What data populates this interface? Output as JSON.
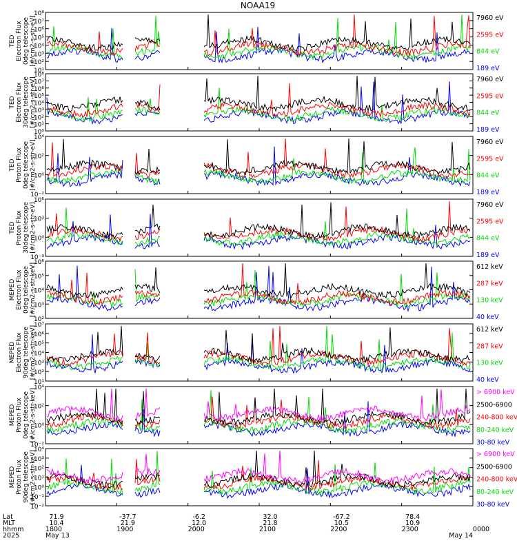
{
  "title": "NOAA19",
  "colors": {
    "black": "#000000",
    "red": "#ff0000",
    "green": "#00dd00",
    "blue": "#0000ff",
    "magenta": "#ff00ff"
  },
  "footer": {
    "row_labels": [
      "Lat",
      "MLT",
      "hhmm",
      "2025"
    ],
    "lat": [
      "71.9",
      "-37.7",
      "-6.2",
      "32.0",
      "-67.2",
      "78.4"
    ],
    "mlt": [
      "10.4",
      "21.9",
      "12.0",
      "21.8",
      "10.5",
      "10.9"
    ],
    "hhmm": [
      "1800",
      "1900",
      "2000",
      "2100",
      "2200",
      "2300",
      "0000"
    ],
    "date_start": "May 13",
    "date_end": "May 14"
  },
  "chart_data": [
    {
      "type": "line",
      "ylabel": [
        "TED",
        "Electron Flux",
        "0deg telescope",
        "[#/cm2-s-str-eV]"
      ],
      "yticks": [
        "10⁸",
        "10⁷",
        "10⁶",
        "10⁵",
        "10⁴",
        "10³",
        "10²",
        "10¹"
      ],
      "ylog": [
        1,
        8
      ],
      "legend": [
        {
          "label": "7960 eV",
          "color": "black"
        },
        {
          "label": "2595 eV",
          "color": "red"
        },
        {
          "label": "844 eV",
          "color": "green"
        },
        {
          "label": "189 eV",
          "color": "blue"
        }
      ]
    },
    {
      "type": "line",
      "ylabel": [
        "TED",
        "Electron Flux",
        "30deg telescope",
        "[#/cm2-s-str-eV]"
      ],
      "yticks": [
        "10⁸",
        "10⁷",
        "10⁶",
        "10⁵",
        "10⁴",
        "10³",
        "10²",
        "10¹",
        "10⁰"
      ],
      "ylog": [
        0,
        8
      ],
      "legend": [
        {
          "label": "7960 eV",
          "color": "black"
        },
        {
          "label": "2595 eV",
          "color": "red"
        },
        {
          "label": "844 eV",
          "color": "green"
        },
        {
          "label": "189 eV",
          "color": "blue"
        }
      ]
    },
    {
      "type": "line",
      "ylabel": [
        "TED",
        "Proton Flux",
        "0deg telescope",
        "[#/cm2-s-str-eV]"
      ],
      "yticks": [
        "10⁴",
        "10²",
        "10⁰",
        "10⁻²"
      ],
      "ylog": [
        -2,
        4
      ],
      "legend": [
        {
          "label": "7960 eV",
          "color": "black"
        },
        {
          "label": "2595 eV",
          "color": "red"
        },
        {
          "label": "844 eV",
          "color": "green"
        },
        {
          "label": "189 eV",
          "color": "blue"
        }
      ]
    },
    {
      "type": "line",
      "ylabel": [
        "TED",
        "Proton Flux",
        "30deg telescope",
        "[#/cm2-s-str-eV]"
      ],
      "yticks": [
        "10⁶",
        "10³",
        "10⁰",
        "10⁻³"
      ],
      "ylog": [
        -3,
        6
      ],
      "legend": [
        {
          "label": "7960 eV",
          "color": "black"
        },
        {
          "label": "2595 eV",
          "color": "red"
        },
        {
          "label": "844 eV",
          "color": "green"
        },
        {
          "label": "189 eV",
          "color": "blue"
        }
      ]
    },
    {
      "type": "line",
      "ylabel": [
        "MEPED",
        "Electron Flux",
        "0deg telescope",
        "[#/cm2-s-str-keV]"
      ],
      "yticks": [
        "10⁶",
        "10⁵",
        "10⁴",
        "10³",
        "10²"
      ],
      "ylog": [
        2,
        6
      ],
      "legend": [
        {
          "label": "612 keV",
          "color": "black"
        },
        {
          "label": "287 keV",
          "color": "red"
        },
        {
          "label": "130 keV",
          "color": "green"
        },
        {
          "label": "40 keV",
          "color": "blue"
        }
      ]
    },
    {
      "type": "line",
      "ylabel": [
        "MEPED",
        "Electron Flux",
        "90deg telescope",
        "[#/cm2-s-str-keV]"
      ],
      "yticks": [
        "10⁷",
        "10⁶",
        "10⁵",
        "10⁴",
        "10³",
        "10²",
        "10¹"
      ],
      "ylog": [
        1,
        7
      ],
      "legend": [
        {
          "label": "612 keV",
          "color": "black"
        },
        {
          "label": "287 keV",
          "color": "red"
        },
        {
          "label": "130 keV",
          "color": "green"
        },
        {
          "label": "40 keV",
          "color": "blue"
        }
      ]
    },
    {
      "type": "line",
      "ylabel": [
        "MEPED",
        "Proton Flux",
        "0deg telescope",
        "[#/cm2-s-str-keV]"
      ],
      "yticks": [
        "10⁴",
        "10²",
        "10⁰",
        "10⁻²"
      ],
      "ylog": [
        -2,
        4
      ],
      "legend": [
        {
          "label": "> 6900 keV",
          "color": "magenta"
        },
        {
          "label": "2500-6900",
          "color": "black"
        },
        {
          "label": "240-800 keV",
          "color": "red"
        },
        {
          "label": "80-240 keV",
          "color": "green"
        },
        {
          "label": "30-80 keV",
          "color": "blue"
        }
      ]
    },
    {
      "type": "line",
      "ylabel": [
        "MEPED",
        "Proton Flux",
        "90deg telescope",
        "[#/cm2-s-str-keV]"
      ],
      "yticks": [
        "10⁴",
        "10³",
        "10²",
        "10¹",
        "10⁰",
        "10⁻¹",
        "10⁻²"
      ],
      "ylog": [
        -2,
        4
      ],
      "legend": [
        {
          "label": "> 6900 keV",
          "color": "magenta"
        },
        {
          "label": "2500-6900",
          "color": "black"
        },
        {
          "label": "240-800 keV",
          "color": "red"
        },
        {
          "label": "80-240 keV",
          "color": "green"
        },
        {
          "label": "30-80 keV",
          "color": "blue"
        }
      ]
    }
  ]
}
